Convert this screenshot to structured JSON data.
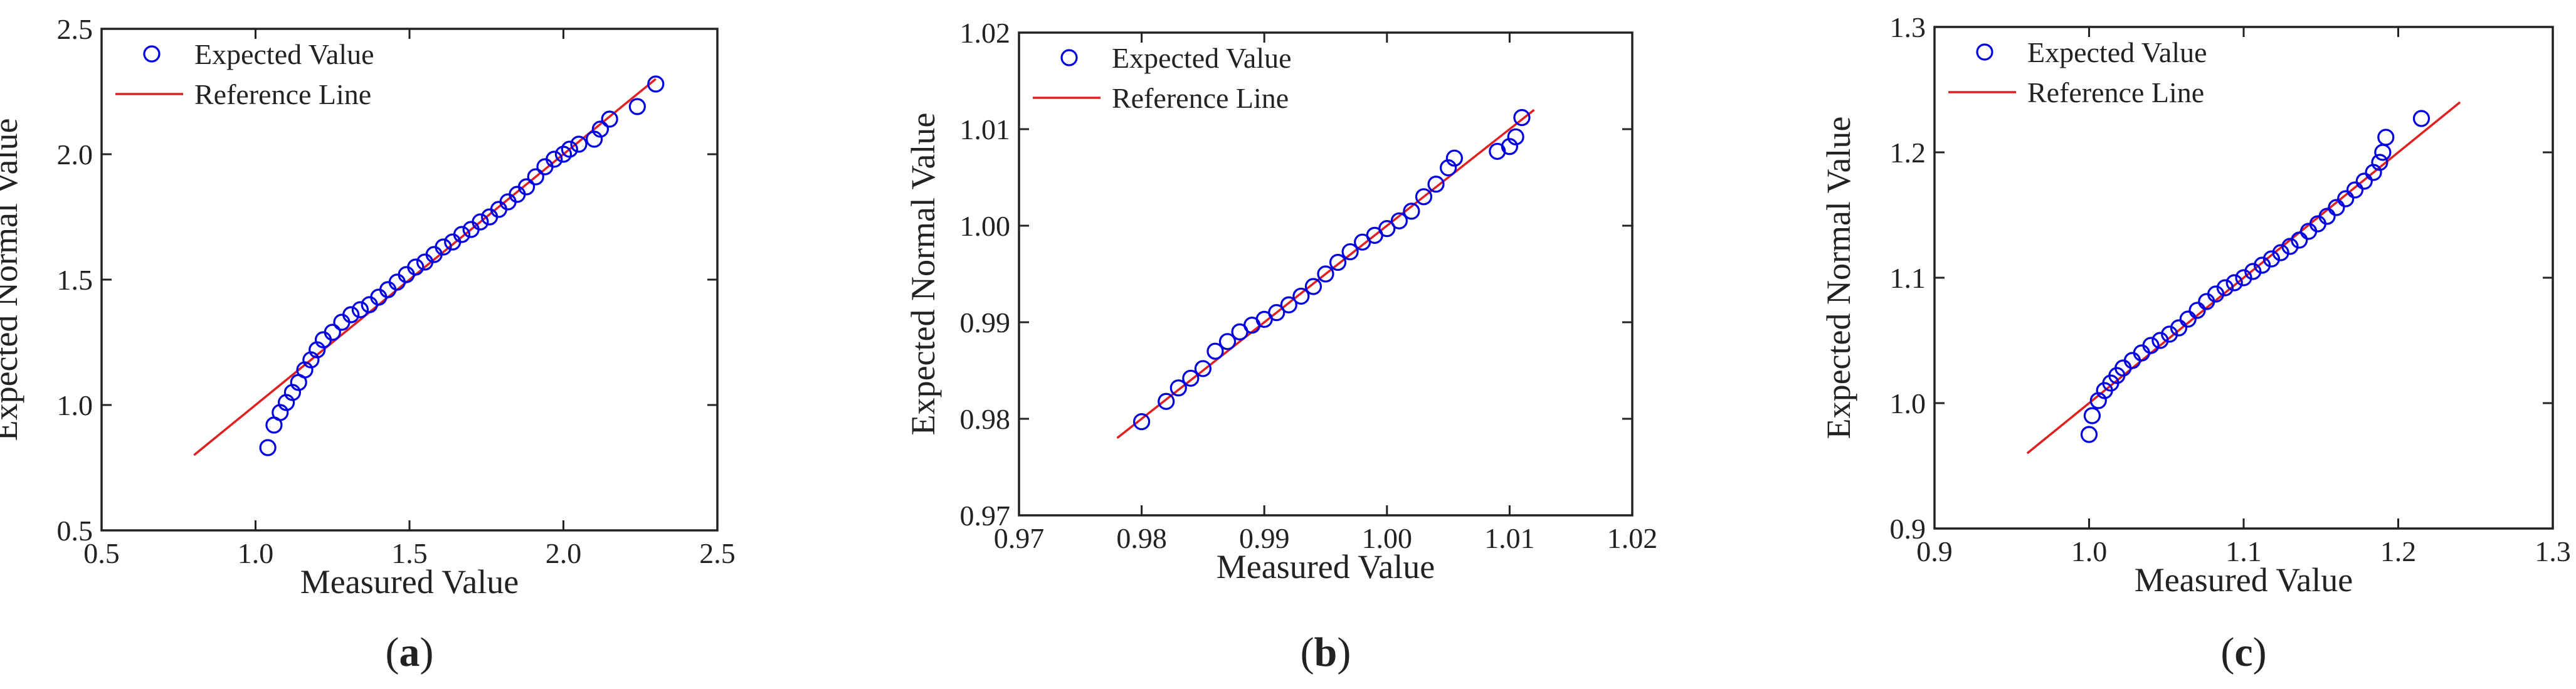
{
  "chart_data": [
    {
      "type": "scatter",
      "panel_label": "a",
      "xlabel": "Measured Value",
      "ylabel": "Expected Normal Value",
      "xlim": [
        0.5,
        2.5
      ],
      "ylim": [
        0.5,
        2.5
      ],
      "xticks": [
        "0.5",
        "1.0",
        "1.5",
        "2.0",
        "2.5"
      ],
      "yticks": [
        "0.5",
        "1.0",
        "1.5",
        "2.0",
        "2.5"
      ],
      "legend": {
        "placement": "top-left",
        "entries": [
          "Expected Value",
          "Reference Line"
        ]
      },
      "series": [
        {
          "name": "Expected Value",
          "kind": "points",
          "color": "#0000e0",
          "x": [
            1.04,
            1.06,
            1.08,
            1.1,
            1.12,
            1.14,
            1.16,
            1.18,
            1.2,
            1.22,
            1.25,
            1.28,
            1.31,
            1.34,
            1.37,
            1.4,
            1.43,
            1.46,
            1.49,
            1.52,
            1.55,
            1.58,
            1.61,
            1.64,
            1.67,
            1.7,
            1.73,
            1.76,
            1.79,
            1.82,
            1.85,
            1.88,
            1.91,
            1.94,
            1.97,
            2.0,
            2.02,
            2.05,
            2.1,
            2.12,
            2.15,
            2.24,
            2.3
          ],
          "y": [
            0.83,
            0.92,
            0.97,
            1.01,
            1.05,
            1.09,
            1.14,
            1.18,
            1.22,
            1.26,
            1.29,
            1.33,
            1.36,
            1.38,
            1.4,
            1.43,
            1.46,
            1.49,
            1.52,
            1.55,
            1.57,
            1.6,
            1.63,
            1.65,
            1.68,
            1.7,
            1.73,
            1.75,
            1.78,
            1.81,
            1.84,
            1.87,
            1.91,
            1.95,
            1.98,
            2.0,
            2.02,
            2.04,
            2.06,
            2.1,
            2.14,
            2.19,
            2.28
          ]
        },
        {
          "name": "Reference Line",
          "kind": "line",
          "color": "#e02020",
          "x": [
            0.8,
            2.3
          ],
          "y": [
            0.8,
            2.3
          ]
        }
      ]
    },
    {
      "type": "scatter",
      "panel_label": "b",
      "xlabel": "Measured Value",
      "ylabel": "Expected Normal Value",
      "xlim": [
        0.97,
        1.02
      ],
      "ylim": [
        0.97,
        1.02
      ],
      "xticks": [
        "0.97",
        "0.98",
        "0.99",
        "1.00",
        "1.01",
        "1.02"
      ],
      "yticks": [
        "0.97",
        "0.98",
        "0.99",
        "1.00",
        "1.01",
        "1.02"
      ],
      "legend": {
        "placement": "top-left",
        "entries": [
          "Expected Value",
          "Reference Line"
        ]
      },
      "series": [
        {
          "name": "Expected Value",
          "kind": "points",
          "color": "#0000e0",
          "x": [
            0.98,
            0.982,
            0.983,
            0.984,
            0.985,
            0.986,
            0.987,
            0.988,
            0.989,
            0.99,
            0.991,
            0.992,
            0.993,
            0.994,
            0.995,
            0.996,
            0.997,
            0.998,
            0.999,
            1.0,
            1.001,
            1.002,
            1.003,
            1.004,
            1.005,
            1.0055,
            1.009,
            1.01,
            1.0105,
            1.011
          ],
          "y": [
            0.9797,
            0.9818,
            0.9832,
            0.9842,
            0.9852,
            0.987,
            0.988,
            0.989,
            0.9897,
            0.9903,
            0.991,
            0.9918,
            0.9927,
            0.9937,
            0.995,
            0.9962,
            0.9973,
            0.9983,
            0.999,
            0.9997,
            1.0005,
            1.0015,
            1.003,
            1.0043,
            1.006,
            1.007,
            1.0077,
            1.0082,
            1.0092,
            1.0112
          ]
        },
        {
          "name": "Reference Line",
          "kind": "line",
          "color": "#e02020",
          "x": [
            0.978,
            1.012
          ],
          "y": [
            0.978,
            1.012
          ]
        }
      ]
    },
    {
      "type": "scatter",
      "panel_label": "c",
      "xlabel": "Measured Value",
      "ylabel": "Expected Normal Value",
      "xlim": [
        0.9,
        1.3
      ],
      "ylim": [
        0.9,
        1.3
      ],
      "xticks": [
        "0.9",
        "1.0",
        "1.1",
        "1.2",
        "1.3"
      ],
      "yticks": [
        "0.9",
        "1.0",
        "1.1",
        "1.2",
        "1.3"
      ],
      "legend": {
        "placement": "top-left",
        "entries": [
          "Expected Value",
          "Reference Line"
        ]
      },
      "series": [
        {
          "name": "Expected Value",
          "kind": "points",
          "color": "#0000e0",
          "x": [
            1.0,
            1.002,
            1.006,
            1.01,
            1.014,
            1.018,
            1.022,
            1.028,
            1.034,
            1.04,
            1.046,
            1.052,
            1.058,
            1.064,
            1.07,
            1.076,
            1.082,
            1.088,
            1.094,
            1.1,
            1.106,
            1.112,
            1.118,
            1.124,
            1.13,
            1.136,
            1.142,
            1.148,
            1.154,
            1.16,
            1.166,
            1.172,
            1.178,
            1.184,
            1.188,
            1.19,
            1.192,
            1.215
          ],
          "y": [
            0.975,
            0.99,
            1.002,
            1.01,
            1.016,
            1.022,
            1.028,
            1.034,
            1.04,
            1.046,
            1.05,
            1.055,
            1.06,
            1.067,
            1.074,
            1.081,
            1.087,
            1.092,
            1.096,
            1.1,
            1.105,
            1.11,
            1.115,
            1.12,
            1.125,
            1.13,
            1.137,
            1.143,
            1.149,
            1.156,
            1.163,
            1.17,
            1.177,
            1.184,
            1.192,
            1.2,
            1.212,
            1.227
          ]
        },
        {
          "name": "Reference Line",
          "kind": "line",
          "color": "#e02020",
          "x": [
            0.96,
            1.24
          ],
          "y": [
            0.96,
            1.24
          ]
        }
      ]
    }
  ]
}
